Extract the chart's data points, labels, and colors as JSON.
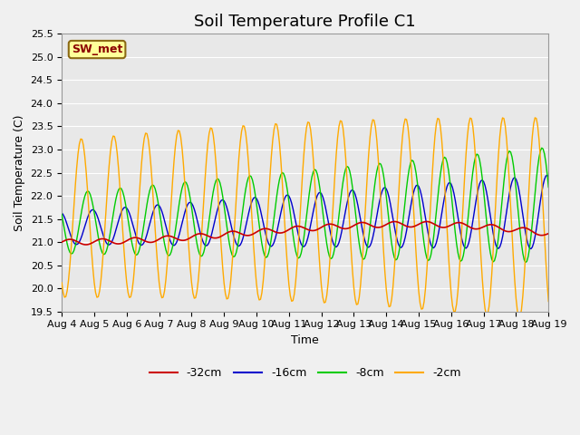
{
  "title": "Soil Temperature Profile C1",
  "xlabel": "Time",
  "ylabel": "Soil Temperature (C)",
  "ylim": [
    19.5,
    25.5
  ],
  "yticks": [
    19.5,
    20.0,
    20.5,
    21.0,
    21.5,
    22.0,
    22.5,
    23.0,
    23.5,
    24.0,
    24.5,
    25.0,
    25.5
  ],
  "xtick_labels": [
    "Aug 4",
    "Aug 5",
    "Aug 6",
    "Aug 7",
    "Aug 8",
    "Aug 9",
    "Aug 10",
    "Aug 11",
    "Aug 12",
    "Aug 13",
    "Aug 14",
    "Aug 15",
    "Aug 16",
    "Aug 17",
    "Aug 18",
    "Aug 19"
  ],
  "line_colors": {
    "-32cm": "#cc0000",
    "-16cm": "#0000cc",
    "-8cm": "#00cc00",
    "-2cm": "#ffaa00"
  },
  "legend_label": "SW_met",
  "legend_text_color": "#8b0000",
  "legend_bg_color": "#ffff99",
  "legend_border_color": "#8b6914",
  "plot_bg_color": "#e8e8e8",
  "fig_bg_color": "#f0f0f0",
  "grid_color": "#ffffff",
  "title_fontsize": 13,
  "axis_fontsize": 9,
  "tick_fontsize": 8
}
